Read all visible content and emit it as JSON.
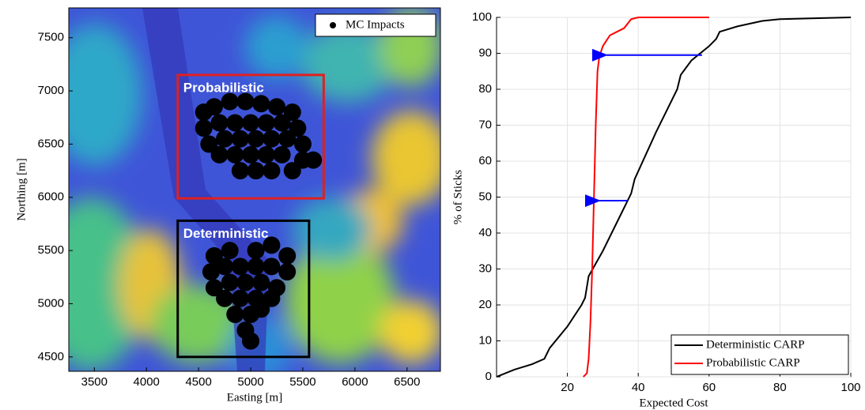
{
  "chart_data": [
    {
      "type": "scatter",
      "xlabel": "Easting [m]",
      "ylabel": "Northing [m]",
      "xlim": [
        3255,
        6820
      ],
      "ylim": [
        4365,
        7780
      ],
      "xticks": [
        3500,
        4000,
        4500,
        5000,
        5500,
        6000,
        6500
      ],
      "yticks": [
        4500,
        5000,
        5500,
        6000,
        6500,
        7000,
        7500
      ],
      "legend": "top-right",
      "series": [
        {
          "name": "MC Impacts",
          "color": "#000000",
          "x": [
            4550,
            4650,
            4800,
            4950,
            5100,
            5250,
            5400,
            4550,
            4700,
            4850,
            5000,
            5150,
            5300,
            5450,
            4600,
            4750,
            4900,
            5050,
            5200,
            5350,
            5500,
            4700,
            4850,
            5000,
            5150,
            5300,
            5500,
            4900,
            5050,
            5200,
            5400,
            5600,
            4650,
            4800,
            5050,
            5200,
            5350,
            4620,
            4750,
            4900,
            5050,
            5200,
            5350,
            4650,
            4800,
            4950,
            5100,
            5250,
            4750,
            4900,
            5050,
            5200,
            4850,
            5000,
            5100,
            4950,
            5000
          ],
          "values": [
            6800,
            6850,
            6900,
            6900,
            6880,
            6850,
            6800,
            6650,
            6700,
            6700,
            6700,
            6700,
            6700,
            6650,
            6500,
            6550,
            6550,
            6550,
            6550,
            6550,
            6500,
            6400,
            6400,
            6400,
            6400,
            6400,
            6350,
            6250,
            6250,
            6250,
            6250,
            6350,
            5450,
            5500,
            5500,
            5550,
            5450,
            5300,
            5350,
            5350,
            5350,
            5350,
            5300,
            5150,
            5200,
            5200,
            5200,
            5150,
            5050,
            5050,
            5050,
            5050,
            4900,
            4900,
            4950,
            4750,
            4650
          ]
        }
      ],
      "annotations": [
        {
          "label": "Probabilistic",
          "color": "#e02020",
          "xlim": [
            4300,
            5700
          ],
          "ylim": [
            5990,
            7150
          ]
        },
        {
          "label": "Deterministic",
          "color": "#000000",
          "xlim": [
            4300,
            5560
          ],
          "ylim": [
            4500,
            5780
          ]
        }
      ]
    },
    {
      "type": "line",
      "xlabel": "Expected Cost",
      "ylabel": "% of Sticks",
      "xlim": [
        0,
        100
      ],
      "ylim": [
        0,
        100
      ],
      "xticks": [
        20,
        40,
        60,
        80,
        100
      ],
      "yticks": [
        0,
        10,
        20,
        30,
        40,
        50,
        60,
        70,
        80,
        90,
        100
      ],
      "grid": true,
      "legend": "bottom-right",
      "series": [
        {
          "name": "Deterministic CARP",
          "color": "#000000",
          "x": [
            0,
            5,
            10,
            13.5,
            15,
            20,
            24,
            25,
            26,
            30,
            35,
            38,
            39,
            45,
            50,
            51,
            52,
            55,
            60,
            62,
            63,
            68,
            75,
            80,
            100
          ],
          "values": [
            0,
            2,
            3.5,
            5,
            8,
            14,
            20,
            22,
            28,
            35,
            45,
            51,
            55,
            68,
            78,
            80,
            84,
            88,
            92,
            94,
            96,
            97.5,
            99,
            99.5,
            100
          ]
        },
        {
          "name": "Probabilistic CARP",
          "color": "#ff0000",
          "x": [
            24.5,
            25.5,
            26,
            26.5,
            27,
            27.5,
            28,
            28.5,
            29,
            30,
            32,
            34,
            36,
            38,
            40,
            60
          ],
          "values": [
            0,
            1,
            5,
            15,
            30,
            50,
            70,
            85,
            89,
            92,
            95,
            96,
            97,
            99.5,
            100,
            100
          ]
        }
      ],
      "arrows": [
        {
          "x1": 58,
          "x2": 29,
          "y": 89.5,
          "color": "#0000ff"
        },
        {
          "x1": 37,
          "x2": 27,
          "y": 49,
          "color": "#0000ff"
        }
      ]
    }
  ]
}
